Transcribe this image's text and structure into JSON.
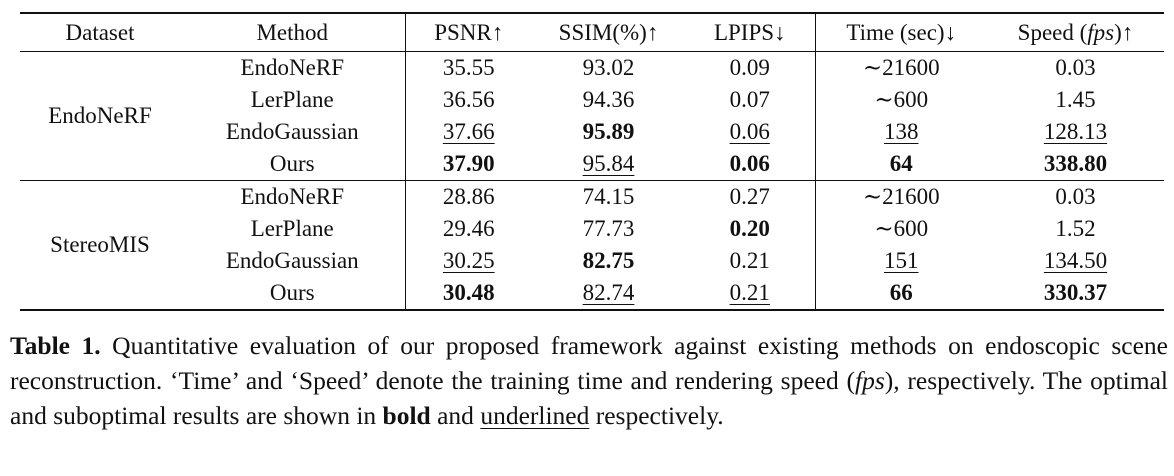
{
  "table": {
    "headers": {
      "dataset": "Dataset",
      "method": "Method",
      "psnr": "PSNR↑",
      "ssim": "SSIM(%)↑",
      "lpips": "LPIPS↓",
      "time": "Time (sec)↓",
      "speed_prefix": "Speed (",
      "speed_fps": "fps",
      "speed_suffix": ")↑"
    },
    "groups": [
      {
        "dataset": "EndoNeRF",
        "rows": [
          {
            "method": "EndoNeRF",
            "psnr": "35.55",
            "ssim": "93.02",
            "lpips": "0.09",
            "time": "∼21600",
            "speed": "0.03"
          },
          {
            "method": "LerPlane",
            "psnr": "36.56",
            "ssim": "94.36",
            "lpips": "0.07",
            "time": "∼600",
            "speed": "1.45"
          },
          {
            "method": "EndoGaussian",
            "psnr": "37.66",
            "ssim": "95.89",
            "lpips": "0.06",
            "time": "138",
            "speed": "128.13"
          },
          {
            "method": "Ours",
            "psnr": "37.90",
            "ssim": "95.84",
            "lpips": "0.06",
            "time": "64",
            "speed": "338.80"
          }
        ]
      },
      {
        "dataset": "StereoMIS",
        "rows": [
          {
            "method": "EndoNeRF",
            "psnr": "28.86",
            "ssim": "74.15",
            "lpips": "0.27",
            "time": "∼21600",
            "speed": "0.03"
          },
          {
            "method": "LerPlane",
            "psnr": "29.46",
            "ssim": "77.73",
            "lpips": "0.20",
            "time": "∼600",
            "speed": "1.52"
          },
          {
            "method": "EndoGaussian",
            "psnr": "30.25",
            "ssim": "82.75",
            "lpips": "0.21",
            "time": "151",
            "speed": "134.50"
          },
          {
            "method": "Ours",
            "psnr": "30.48",
            "ssim": "82.74",
            "lpips": "0.21",
            "time": "66",
            "speed": "330.37"
          }
        ]
      }
    ]
  },
  "caption": {
    "label": "Table 1.",
    "text_1": " Quantitative evaluation of our proposed framework against existing methods on endoscopic scene reconstruction. ‘Time’ and ‘Speed’ denote the training time and rendering speed (",
    "fps": "fps",
    "text_2": "), respectively. The optimal and suboptimal results are shown in ",
    "bold_word": "bold",
    "text_3": " and ",
    "underlined_word": "underlined",
    "text_4": " respectively."
  }
}
